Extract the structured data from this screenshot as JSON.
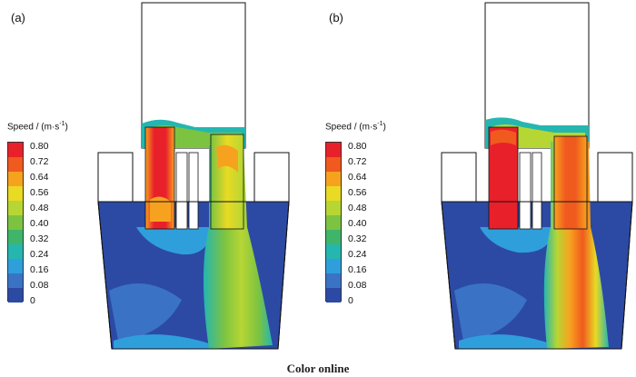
{
  "panels": [
    {
      "label": "(a)",
      "legend_title": "Speed / (m·s",
      "legend_exp": "-1",
      "legend_title_end": ")",
      "ticks": [
        "0.80",
        "0.72",
        "0.64",
        "0.56",
        "0.48",
        "0.40",
        "0.32",
        "0.24",
        "0.16",
        "0.08",
        "0"
      ]
    },
    {
      "label": "(b)",
      "legend_title": "Speed / (m·s",
      "legend_exp": "-1",
      "legend_title_end": ")",
      "ticks": [
        "0.80",
        "0.72",
        "0.64",
        "0.56",
        "0.48",
        "0.40",
        "0.32",
        "0.24",
        "0.16",
        "0.08",
        "0"
      ]
    }
  ],
  "colormap": [
    "#e8202a",
    "#f05a1e",
    "#f7a21f",
    "#e9da23",
    "#b6d634",
    "#7cc342",
    "#3fb56a",
    "#25b6b0",
    "#2f9fdc",
    "#3a72c6",
    "#2c4aa4"
  ],
  "caption": "Color online"
}
